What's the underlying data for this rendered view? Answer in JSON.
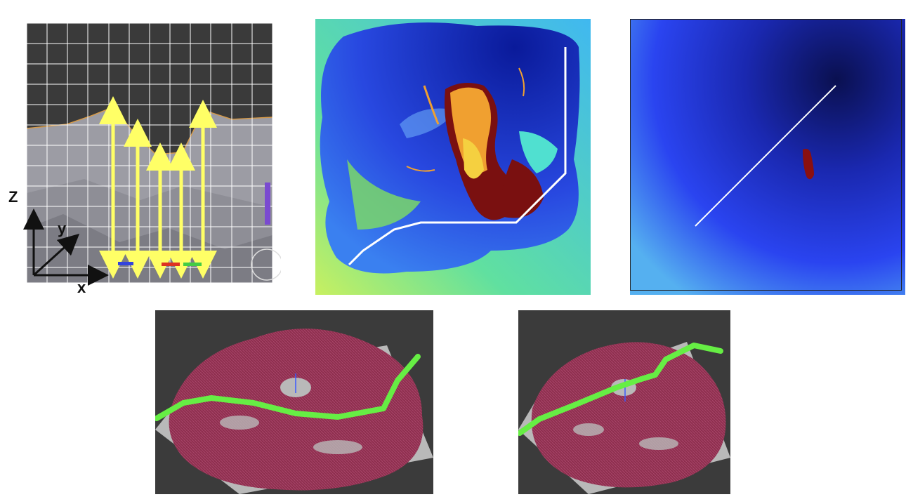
{
  "panels": {
    "side_profile": {
      "axis_labels": {
        "z": "Z",
        "y": "y",
        "x": "x"
      },
      "colors": {
        "sky": "#3a3a3a",
        "terrain": "#9a9aa2",
        "grid": "#ffffff",
        "profile": "#d59a4a",
        "arrow": "#ffff66"
      },
      "markers": [
        "blue",
        "red",
        "green"
      ]
    },
    "cost_map_path": {
      "colors": {
        "low": "#1f3fe0",
        "high": "#7a0e08",
        "path": "#ffffff"
      }
    },
    "cost_map_line": {
      "colors": {
        "low": "#2a44f0",
        "dark": "#0a1050",
        "path": "#ffffff",
        "blob": "#8a1010"
      }
    },
    "mesh_view_a": {
      "colors": {
        "background": "#3b3b3b",
        "plane": "#b9b9b9",
        "mesh": "#8e2f4e",
        "path": "#66ee44"
      }
    },
    "mesh_view_b": {
      "colors": {
        "background": "#3b3b3b",
        "plane": "#b9b9b9",
        "mesh": "#8e2f4e",
        "path": "#66ee44"
      }
    }
  }
}
